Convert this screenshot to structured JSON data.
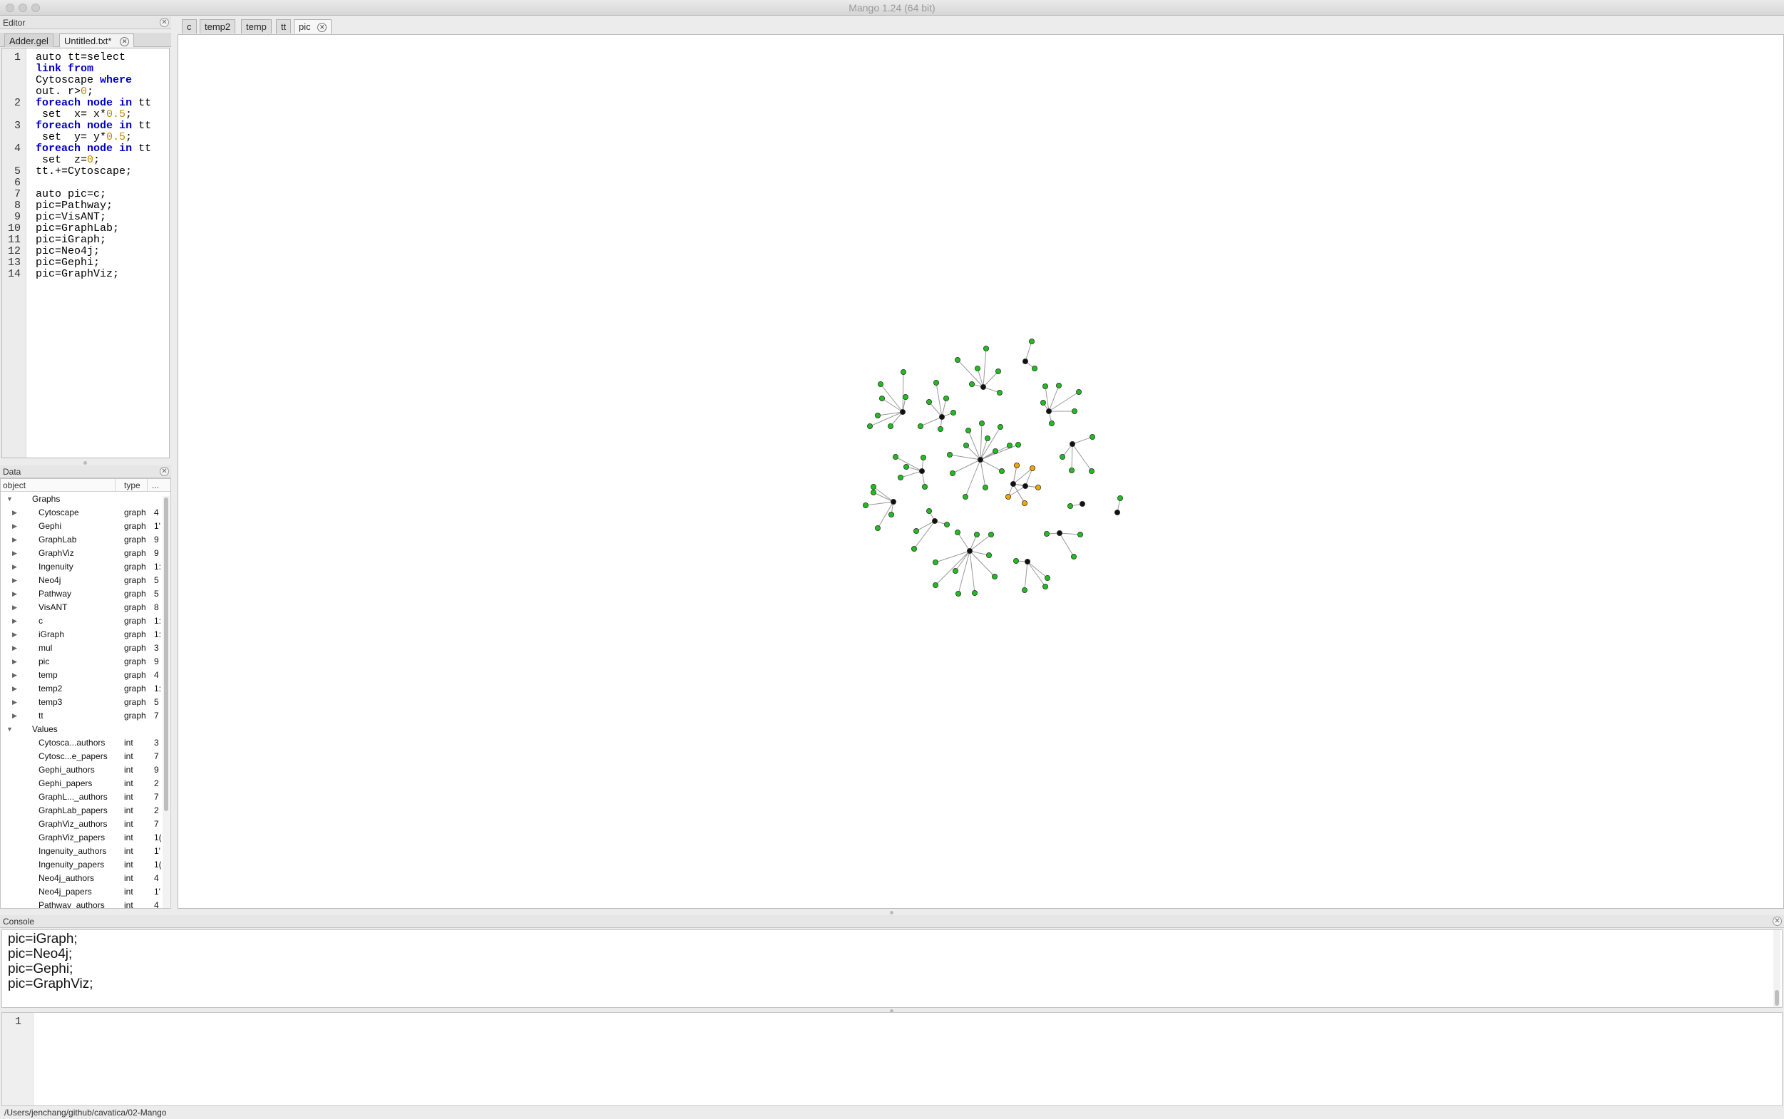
{
  "window": {
    "title": "Mango 1.24 (64 bit)"
  },
  "editor": {
    "header": "Editor",
    "tabs": [
      {
        "label": "Adder.gel"
      },
      {
        "label": "Untitled.txt*"
      }
    ],
    "lines": [
      {
        "n": "1",
        "tokens": [
          [
            "t",
            "auto tt=select"
          ]
        ]
      },
      {
        "n": "",
        "tokens": [
          [
            "k",
            "link"
          ],
          [
            "t",
            " "
          ],
          [
            "k",
            "from"
          ]
        ]
      },
      {
        "n": "",
        "tokens": [
          [
            "t",
            "Cytoscape "
          ],
          [
            "k",
            "where"
          ]
        ]
      },
      {
        "n": "",
        "tokens": [
          [
            "t",
            "out. r>"
          ],
          [
            "m",
            "0"
          ],
          [
            "t",
            ";"
          ]
        ]
      },
      {
        "n": "2",
        "tokens": [
          [
            "k",
            "foreach"
          ],
          [
            "t",
            " "
          ],
          [
            "k",
            "node"
          ],
          [
            "t",
            " "
          ],
          [
            "k",
            "in"
          ],
          [
            "t",
            " tt"
          ]
        ]
      },
      {
        "n": "",
        "tokens": [
          [
            "t",
            " set  x= x*"
          ],
          [
            "m",
            "0.5"
          ],
          [
            "t",
            ";"
          ]
        ]
      },
      {
        "n": "3",
        "tokens": [
          [
            "k",
            "foreach"
          ],
          [
            "t",
            " "
          ],
          [
            "k",
            "node"
          ],
          [
            "t",
            " "
          ],
          [
            "k",
            "in"
          ],
          [
            "t",
            " tt"
          ]
        ]
      },
      {
        "n": "",
        "tokens": [
          [
            "t",
            " set  y= y*"
          ],
          [
            "m",
            "0.5"
          ],
          [
            "t",
            ";"
          ]
        ]
      },
      {
        "n": "4",
        "tokens": [
          [
            "k",
            "foreach"
          ],
          [
            "t",
            " "
          ],
          [
            "k",
            "node"
          ],
          [
            "t",
            " "
          ],
          [
            "k",
            "in"
          ],
          [
            "t",
            " tt"
          ]
        ]
      },
      {
        "n": "",
        "tokens": [
          [
            "t",
            " set  z="
          ],
          [
            "m",
            "0"
          ],
          [
            "t",
            ";"
          ]
        ]
      },
      {
        "n": "5",
        "tokens": [
          [
            "t",
            "tt.+=Cytoscape;"
          ]
        ]
      },
      {
        "n": "6",
        "tokens": []
      },
      {
        "n": "7",
        "tokens": [
          [
            "t",
            "auto pic=c;"
          ]
        ]
      },
      {
        "n": "8",
        "tokens": [
          [
            "t",
            "pic=Pathway;"
          ]
        ]
      },
      {
        "n": "9",
        "tokens": [
          [
            "t",
            "pic=VisANT;"
          ]
        ]
      },
      {
        "n": "10",
        "tokens": [
          [
            "t",
            "pic=GraphLab;"
          ]
        ]
      },
      {
        "n": "11",
        "tokens": [
          [
            "t",
            "pic=iGraph;"
          ]
        ]
      },
      {
        "n": "12",
        "tokens": [
          [
            "t",
            "pic=Neo4j;"
          ]
        ]
      },
      {
        "n": "13",
        "tokens": [
          [
            "t",
            "pic=Gephi;"
          ]
        ]
      },
      {
        "n": "14",
        "tokens": [
          [
            "t",
            "pic=GraphViz;"
          ]
        ]
      }
    ]
  },
  "data_panel": {
    "header": "Data",
    "columns": {
      "object": "object",
      "type": "type",
      "extra": "..."
    },
    "graphs_label": "Graphs",
    "graphs": [
      {
        "name": "Cytoscape",
        "type": "graph",
        "extra": "4"
      },
      {
        "name": "Gephi",
        "type": "graph",
        "extra": "1'"
      },
      {
        "name": "GraphLab",
        "type": "graph",
        "extra": "9"
      },
      {
        "name": "GraphViz",
        "type": "graph",
        "extra": "9"
      },
      {
        "name": "Ingenuity",
        "type": "graph",
        "extra": "1:"
      },
      {
        "name": "Neo4j",
        "type": "graph",
        "extra": "5"
      },
      {
        "name": "Pathway",
        "type": "graph",
        "extra": "5"
      },
      {
        "name": "VisANT",
        "type": "graph",
        "extra": "8"
      },
      {
        "name": "c",
        "type": "graph",
        "extra": "1:"
      },
      {
        "name": "iGraph",
        "type": "graph",
        "extra": "1:"
      },
      {
        "name": "mul",
        "type": "graph",
        "extra": "3"
      },
      {
        "name": "pic",
        "type": "graph",
        "extra": "9"
      },
      {
        "name": "temp",
        "type": "graph",
        "extra": "4"
      },
      {
        "name": "temp2",
        "type": "graph",
        "extra": "1:"
      },
      {
        "name": "temp3",
        "type": "graph",
        "extra": "5"
      },
      {
        "name": "tt",
        "type": "graph",
        "extra": "7"
      }
    ],
    "values_label": "Values",
    "values": [
      {
        "name": "Cytosca...authors",
        "type": "int",
        "extra": "3"
      },
      {
        "name": "Cytosc...e_papers",
        "type": "int",
        "extra": "7"
      },
      {
        "name": "Gephi_authors",
        "type": "int",
        "extra": "9"
      },
      {
        "name": "Gephi_papers",
        "type": "int",
        "extra": "2"
      },
      {
        "name": "GraphL..._authors",
        "type": "int",
        "extra": "7"
      },
      {
        "name": "GraphLab_papers",
        "type": "int",
        "extra": "2"
      },
      {
        "name": "GraphViz_authors",
        "type": "int",
        "extra": "7"
      },
      {
        "name": "GraphViz_papers",
        "type": "int",
        "extra": "1("
      },
      {
        "name": "Ingenuity_authors",
        "type": "int",
        "extra": "1'"
      },
      {
        "name": "Ingenuity_papers",
        "type": "int",
        "extra": "1("
      },
      {
        "name": "Neo4j_authors",
        "type": "int",
        "extra": "4"
      },
      {
        "name": "Neo4j_papers",
        "type": "int",
        "extra": "1'"
      },
      {
        "name": "Pathway_authors",
        "type": "int",
        "extra": "4"
      }
    ]
  },
  "canvas_tabs": [
    {
      "label": "c"
    },
    {
      "label": "temp2"
    },
    {
      "label": "temp"
    },
    {
      "label": "tt"
    },
    {
      "label": "pic",
      "active": true
    }
  ],
  "graph": {
    "colors": {
      "hub": "#111111",
      "leaf": "#22bb22",
      "highlight": "#f0a800",
      "edge": "#999999"
    }
  },
  "console": {
    "header": "Console",
    "output": [
      "pic=iGraph;",
      "pic=Neo4j;",
      "pic=Gephi;",
      "pic=GraphViz;"
    ],
    "input_line_number": "1"
  },
  "status": {
    "path": "/Users/jenchang/github/cavatica/02-Mango"
  }
}
